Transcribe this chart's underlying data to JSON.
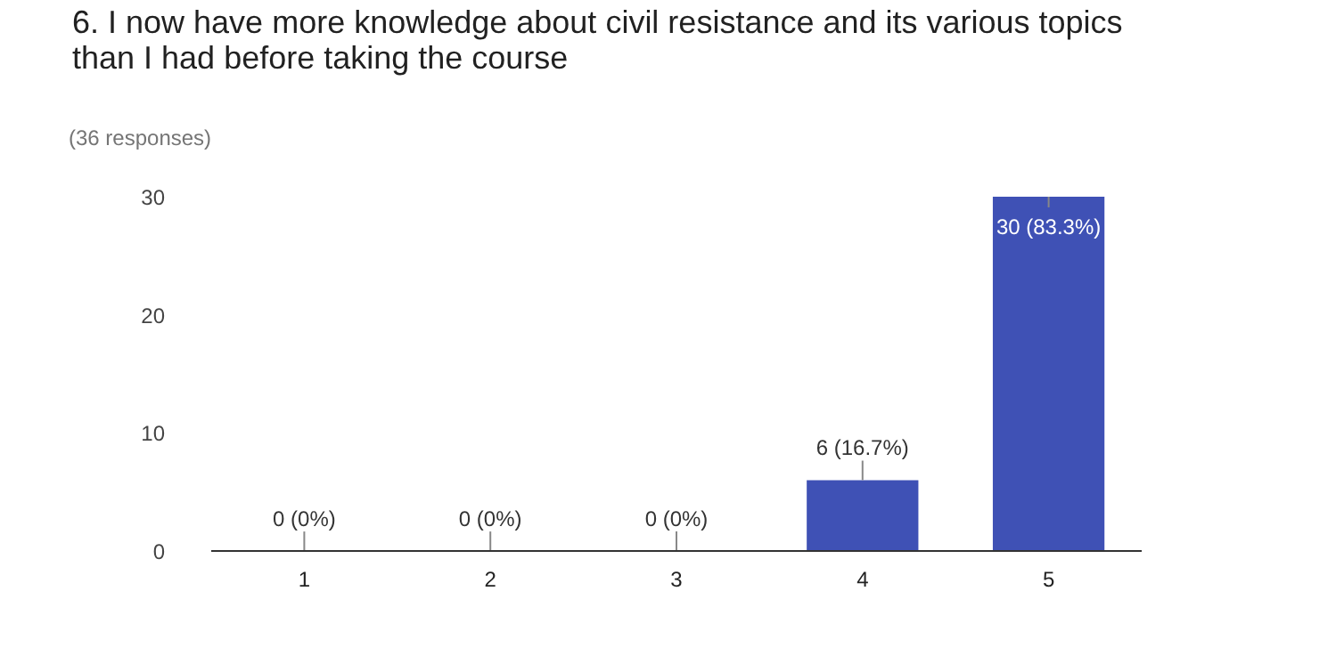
{
  "chart_data": {
    "type": "bar",
    "title": "6. I now have more knowledge about civil resistance and its various topics than I had before taking the course",
    "subtitle": "(36 responses)",
    "categories": [
      "1",
      "2",
      "3",
      "4",
      "5"
    ],
    "values": [
      0,
      0,
      0,
      6,
      30
    ],
    "value_labels": [
      "0 (0%)",
      "0 (0%)",
      "0 (0%)",
      "6 (16.7%)",
      "30 (83.3%)"
    ],
    "color": "#3f51b5",
    "ylim": [
      0,
      30
    ],
    "yticks": [
      0,
      10,
      20,
      30
    ],
    "grid": false
  }
}
